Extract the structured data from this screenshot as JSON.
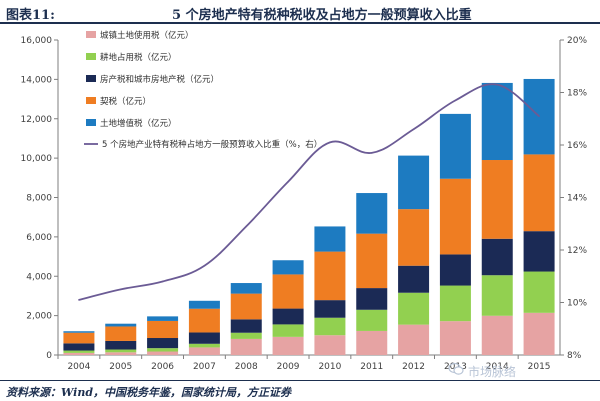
{
  "header": {
    "figure_number": "图表11:",
    "title": "5 个房地产特有税种税收及占地方一般预算收入比重"
  },
  "source": "资料来源：Wind，中国税务年鉴，国家统计局，方正证券",
  "watermark": "市场脉络",
  "colors": {
    "cz": "#e6a3a3",
    "gd": "#92d050",
    "fc": "#1b2a55",
    "qs": "#ef7d22",
    "tz": "#1d7bc1",
    "line": "#6b5b95",
    "header": "#1d2f4f"
  },
  "chart_data": {
    "type": "bar",
    "stacked": true,
    "categories": [
      "2004",
      "2005",
      "2006",
      "2007",
      "2008",
      "2009",
      "2010",
      "2011",
      "2012",
      "2013",
      "2014",
      "2015"
    ],
    "series": [
      {
        "name": "城镇土地使用税（亿元）",
        "key": "cz",
        "values": [
          106,
          137,
          177,
          385,
          817,
          921,
          1004,
          1222,
          1542,
          1719,
          1993,
          2142
        ]
      },
      {
        "name": "耕地占用税（亿元）",
        "key": "gd",
        "values": [
          120,
          141,
          171,
          185,
          314,
          633,
          889,
          1075,
          1621,
          1808,
          2059,
          2097
        ]
      },
      {
        "name": "房产税和城市房地产税（亿元）",
        "key": "fc",
        "values": [
          366,
          436,
          515,
          575,
          680,
          804,
          894,
          1102,
          1372,
          1582,
          1852,
          2051
        ]
      },
      {
        "name": "契税（亿元）",
        "key": "qs",
        "values": [
          540,
          735,
          867,
          1206,
          1307,
          1735,
          2465,
          2765,
          2874,
          3844,
          4000,
          3899
        ]
      },
      {
        "name": "土地增值税（亿元）",
        "key": "tz",
        "values": [
          75,
          141,
          232,
          403,
          537,
          720,
          1278,
          2062,
          2719,
          3294,
          3915,
          3832
        ]
      }
    ],
    "line_series": {
      "name": "5 个房地产业特有税种占地方一般预算收入比重（%，右）",
      "values": [
        10.1,
        10.5,
        10.8,
        11.4,
        12.9,
        14.6,
        16.1,
        15.7,
        16.6,
        17.7,
        18.3,
        17.1
      ]
    },
    "y_left": {
      "min": 0,
      "max": 16000,
      "step": 2000,
      "tick_labels": [
        "0",
        "2,000",
        "4,000",
        "6,000",
        "8,000",
        "10,000",
        "12,000",
        "14,000",
        "16,000"
      ]
    },
    "y_right": {
      "min": 8,
      "max": 20,
      "step": 2,
      "tick_labels": [
        "8%",
        "10%",
        "12%",
        "14%",
        "16%",
        "18%",
        "20%"
      ]
    }
  }
}
